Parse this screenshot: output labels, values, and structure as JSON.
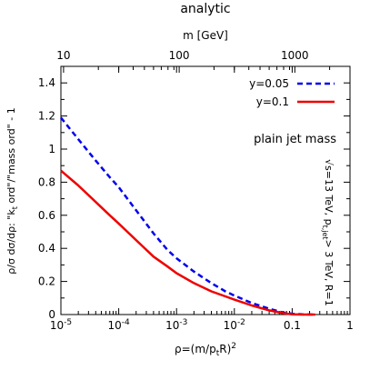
{
  "chart_data": {
    "type": "line",
    "title": "analytic",
    "top_axis_label": "m [GeV]",
    "top_ticks": [
      {
        "value": 10,
        "label": "10"
      },
      {
        "value": 100,
        "label": "100"
      },
      {
        "value": 1000,
        "label": "1000"
      }
    ],
    "xlabel_parts": [
      "ρ=(m/p",
      "t",
      "R)",
      "2"
    ],
    "xscale": "log",
    "xlim": [
      1e-05,
      1
    ],
    "x_ticks": [
      {
        "value": 1e-05,
        "base": "10",
        "exp": "-5"
      },
      {
        "value": 0.0001,
        "base": "10",
        "exp": "-4"
      },
      {
        "value": 0.001,
        "base": "10",
        "exp": "-3"
      },
      {
        "value": 0.01,
        "base": "10",
        "exp": "-2"
      },
      {
        "value": 0.1,
        "base": "0.1",
        "exp": ""
      },
      {
        "value": 1,
        "base": "1",
        "exp": ""
      }
    ],
    "ylabel_parts": [
      "ρ/σ dσ/dρ: \"k",
      "t",
      " ord\"/\"mass ord\" - 1"
    ],
    "ylim": [
      0,
      1.5
    ],
    "y_ticks": [
      "0",
      "0.2",
      "0.4",
      "0.6",
      "0.8",
      "1",
      "1.2",
      "1.4"
    ],
    "annotation": "plain jet mass",
    "side_note_parts": [
      "√s=13 TeV, p",
      "t,jet",
      "> 3 TeV, R=1"
    ],
    "legend_position": "top-right",
    "series": [
      {
        "name": "y=0.05",
        "color": "#0000ee",
        "style": "dashed",
        "x": [
          1e-05,
          2e-05,
          4e-05,
          7e-05,
          0.0001,
          0.0002,
          0.0004,
          0.0007,
          0.001,
          0.002,
          0.004,
          0.007,
          0.01,
          0.02,
          0.04,
          0.07,
          0.1,
          0.15,
          0.25
        ],
        "y": [
          1.19,
          1.06,
          0.93,
          0.83,
          0.77,
          0.63,
          0.49,
          0.39,
          0.34,
          0.26,
          0.19,
          0.14,
          0.115,
          0.07,
          0.035,
          0.012,
          0.005,
          0.001,
          0.0
        ]
      },
      {
        "name": "y=0.1",
        "color": "#ee0000",
        "style": "solid",
        "x": [
          1e-05,
          2e-05,
          4e-05,
          7e-05,
          0.0001,
          0.0002,
          0.0004,
          0.0007,
          0.001,
          0.002,
          0.004,
          0.007,
          0.01,
          0.02,
          0.04,
          0.07,
          0.1,
          0.15,
          0.25
        ],
        "y": [
          0.87,
          0.78,
          0.68,
          0.6,
          0.55,
          0.45,
          0.35,
          0.29,
          0.25,
          0.19,
          0.14,
          0.11,
          0.09,
          0.055,
          0.025,
          0.008,
          0.001,
          0.0,
          0.0
        ]
      }
    ]
  }
}
